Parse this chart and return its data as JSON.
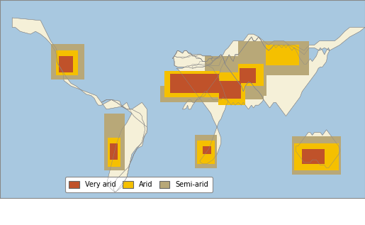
{
  "legend_labels": [
    "Very arid",
    "Arid",
    "Semi-arid"
  ],
  "legend_colors": [
    "#c0522a",
    "#f5c000",
    "#b8a878"
  ],
  "ocean_color": "#a8c8e0",
  "land_color": "#f5f0d8",
  "very_arid_color": "#c0522a",
  "arid_color": "#f5c000",
  "semi_arid_color": "#b8a878",
  "figsize": [
    5.15,
    3.17
  ],
  "dpi": 100,
  "map_extent": [
    -180,
    180,
    -60,
    85
  ]
}
